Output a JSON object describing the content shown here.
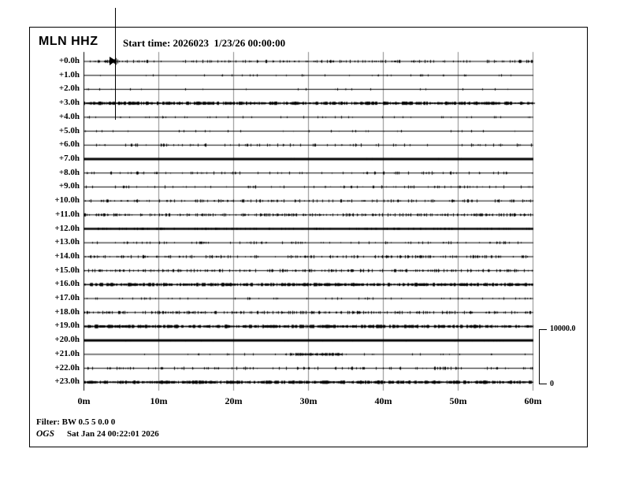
{
  "header": {
    "station": "MLN HHZ",
    "start_time": "Start time: 2026023  1/23/26 00:00:00"
  },
  "scale_bar": {
    "max_label": "10000.0",
    "min_label": "0"
  },
  "footer": {
    "filter": "Filter: BW 0.5 5 0.0 0",
    "agency": "OGS",
    "timestamp": "Sat Jan 24 00:22:01 2026"
  },
  "chart_data": {
    "type": "line",
    "subtype": "helicorder",
    "title": "MLN HHZ",
    "start_time": "2026023 1/23/26 00:00:00",
    "x_axis": {
      "ticks": [
        "0m",
        "10m",
        "20m",
        "30m",
        "40m",
        "50m",
        "60m"
      ],
      "range_minutes": [
        0,
        60
      ],
      "grid": true
    },
    "y_axis": {
      "rows": 24,
      "row_duration": "1h",
      "first_row_label": "+0.0h",
      "last_row_label": "+23.0h"
    },
    "scale": {
      "max": 10000.0,
      "min": 0
    },
    "cursor": {
      "row": 0,
      "minute": 4.3
    },
    "colors": {
      "trace": "#000000",
      "grid": "#8a8a8a",
      "text": "#000000"
    },
    "rows": [
      {
        "label": "+0.0h",
        "activity": "light-with-event",
        "thickness": 1,
        "noise_amp": 1.5,
        "noise_density": 0.22,
        "events": [
          {
            "minute": 4.3,
            "amp": 5,
            "span_minutes": 0.9
          }
        ]
      },
      {
        "label": "+1.0h",
        "activity": "quiet",
        "thickness": 1,
        "noise_amp": 1.0,
        "noise_density": 0.05,
        "events": []
      },
      {
        "label": "+2.0h",
        "activity": "quiet",
        "thickness": 1,
        "noise_amp": 1.0,
        "noise_density": 0.05,
        "events": []
      },
      {
        "label": "+3.0h",
        "activity": "continuous-high",
        "thickness": 1.5,
        "noise_amp": 1.5,
        "noise_density": 0.65,
        "events": []
      },
      {
        "label": "+4.0h",
        "activity": "quiet",
        "thickness": 1,
        "noise_amp": 1.0,
        "noise_density": 0.08,
        "events": []
      },
      {
        "label": "+5.0h",
        "activity": "quiet",
        "thickness": 1,
        "noise_amp": 1.0,
        "noise_density": 0.06,
        "events": []
      },
      {
        "label": "+6.0h",
        "activity": "light",
        "thickness": 1,
        "noise_amp": 1.5,
        "noise_density": 0.16,
        "events": []
      },
      {
        "label": "+7.0h",
        "activity": "clipped",
        "thickness": 3,
        "noise_amp": 0.5,
        "noise_density": 0.1,
        "events": []
      },
      {
        "label": "+8.0h",
        "activity": "light",
        "thickness": 1,
        "noise_amp": 1.5,
        "noise_density": 0.13,
        "events": []
      },
      {
        "label": "+9.0h",
        "activity": "light",
        "thickness": 1,
        "noise_amp": 1.5,
        "noise_density": 0.13,
        "events": []
      },
      {
        "label": "+10.0h",
        "activity": "moderate",
        "thickness": 1,
        "noise_amp": 1.5,
        "noise_density": 0.25,
        "events": []
      },
      {
        "label": "+11.0h",
        "activity": "moderate",
        "thickness": 1,
        "noise_amp": 1.5,
        "noise_density": 0.38,
        "events": []
      },
      {
        "label": "+12.0h",
        "activity": "clipped",
        "thickness": 2.5,
        "noise_amp": 1.0,
        "noise_density": 0.25,
        "events": []
      },
      {
        "label": "+13.0h",
        "activity": "light",
        "thickness": 1,
        "noise_amp": 1.2,
        "noise_density": 0.15,
        "events": []
      },
      {
        "label": "+14.0h",
        "activity": "moderate",
        "thickness": 1,
        "noise_amp": 1.5,
        "noise_density": 0.28,
        "events": []
      },
      {
        "label": "+15.0h",
        "activity": "moderate",
        "thickness": 1,
        "noise_amp": 1.5,
        "noise_density": 0.33,
        "events": []
      },
      {
        "label": "+16.0h",
        "activity": "continuous-high",
        "thickness": 1.5,
        "noise_amp": 1.5,
        "noise_density": 0.6,
        "events": []
      },
      {
        "label": "+17.0h",
        "activity": "quiet",
        "thickness": 1,
        "noise_amp": 1.0,
        "noise_density": 0.1,
        "events": []
      },
      {
        "label": "+18.0h",
        "activity": "moderate",
        "thickness": 1,
        "noise_amp": 1.5,
        "noise_density": 0.33,
        "events": []
      },
      {
        "label": "+19.0h",
        "activity": "continuous-high",
        "thickness": 1.5,
        "noise_amp": 1.5,
        "noise_density": 0.6,
        "events": []
      },
      {
        "label": "+20.0h",
        "activity": "clipped",
        "thickness": 3,
        "noise_amp": 0.5,
        "noise_density": 0.08,
        "events": []
      },
      {
        "label": "+21.0h",
        "activity": "quiet-with-burst",
        "thickness": 1,
        "noise_amp": 1.0,
        "noise_density": 0.05,
        "events": [
          {
            "minute": 31,
            "amp": 1.5,
            "span_minutes": 7
          }
        ]
      },
      {
        "label": "+22.0h",
        "activity": "light",
        "thickness": 1,
        "noise_amp": 1.5,
        "noise_density": 0.18,
        "events": []
      },
      {
        "label": "+23.0h",
        "activity": "continuous-high",
        "thickness": 1.5,
        "noise_amp": 1.5,
        "noise_density": 0.65,
        "events": []
      }
    ]
  }
}
